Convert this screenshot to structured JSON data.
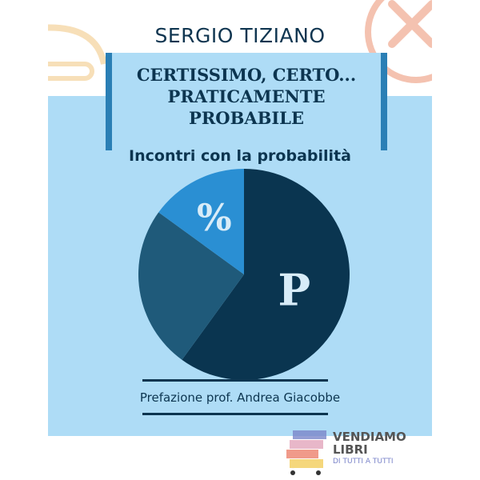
{
  "author": "SERGIO TIZIANO",
  "title_lines": [
    "CERTISSIMO, CERTO...",
    "PRATICAMENTE",
    "PROBABILE"
  ],
  "subtitle": "Incontri con la probabilità",
  "pie": {
    "slices": [
      {
        "label": "P",
        "fraction": 0.6,
        "color": "#0a3550"
      },
      {
        "label": "",
        "fraction": 0.25,
        "color": "#1f5a7a"
      },
      {
        "label": "%",
        "fraction": 0.15,
        "color": "#2a8fd3"
      }
    ]
  },
  "preface": "Prefazione prof. Andrea Giacobbe",
  "publisher": {
    "name_line1": "VENDIAMO",
    "name_line2": "LIBRI",
    "tagline": "DI TUTTI A TUTTI"
  },
  "colors": {
    "navy": "#0c3550",
    "band": "#aedcf6",
    "accent": "#2a7fb5"
  }
}
